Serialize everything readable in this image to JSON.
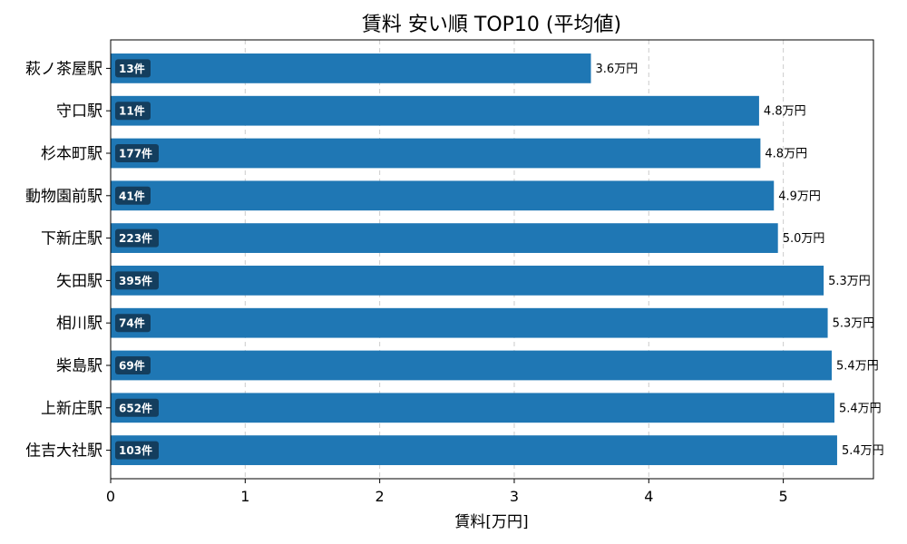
{
  "chart_data": {
    "type": "bar",
    "orientation": "horizontal",
    "title": "賃料 安い順 TOP10 (平均値)",
    "xlabel": "賃料[万円]",
    "ylabel": "",
    "xlim": [
      0,
      5.67
    ],
    "xticks": [
      "0",
      "1",
      "2",
      "3",
      "4",
      "5"
    ],
    "grid": "x-dashed",
    "bar_color": "#1f77b4",
    "badge_color": "#143e5e",
    "categories": [
      "萩ノ茶屋駅",
      "守口駅",
      "杉本町駅",
      "動物園前駅",
      "下新庄駅",
      "矢田駅",
      "相川駅",
      "柴島駅",
      "上新庄駅",
      "住吉大社駅"
    ],
    "values": [
      3.57,
      4.82,
      4.83,
      4.93,
      4.96,
      5.3,
      5.33,
      5.36,
      5.38,
      5.4
    ],
    "value_labels": [
      "3.6万円",
      "4.8万円",
      "4.8万円",
      "4.9万円",
      "5.0万円",
      "5.3万円",
      "5.3万円",
      "5.4万円",
      "5.4万円",
      "5.4万円"
    ],
    "count_labels": [
      "13件",
      "11件",
      "177件",
      "41件",
      "223件",
      "395件",
      "74件",
      "69件",
      "652件",
      "103件"
    ]
  }
}
